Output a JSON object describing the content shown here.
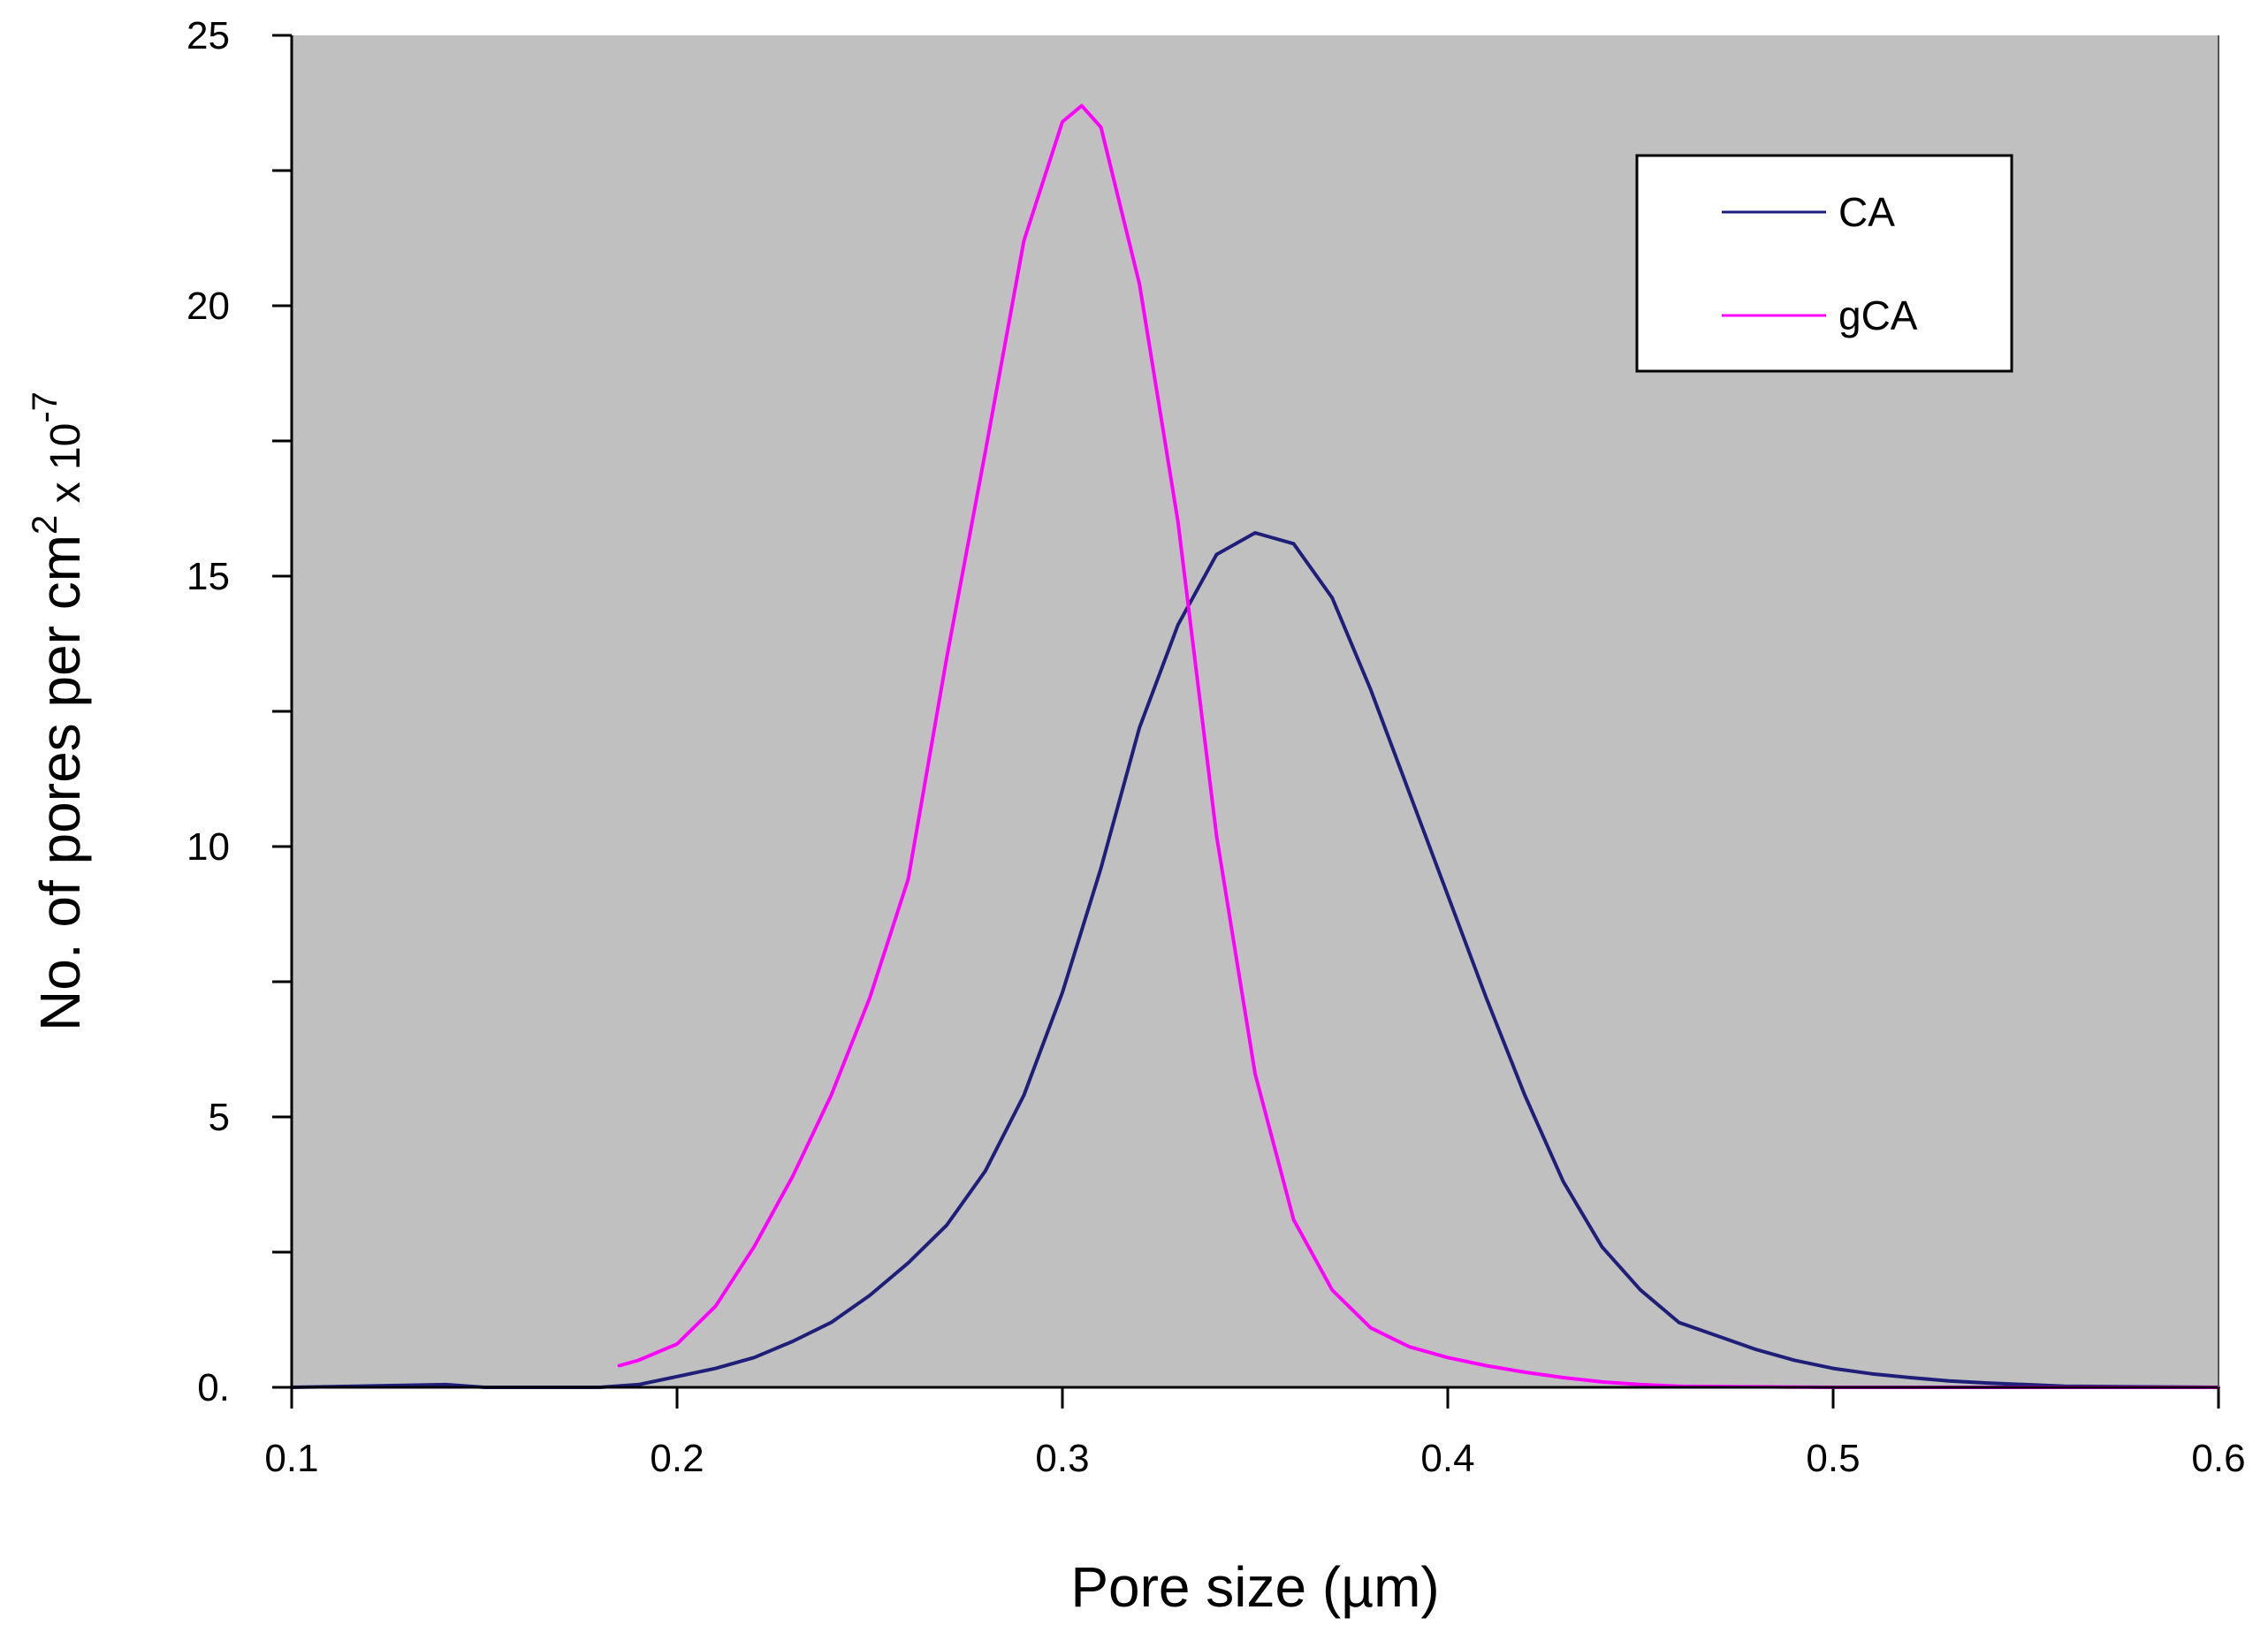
{
  "chart_data": {
    "type": "line",
    "title": "",
    "xlabel": "Pore size (µm)",
    "ylabel": "No. of pores per cm",
    "ylabel_sup1": "2",
    "ylabel_mid": " x 10",
    "ylabel_sup2": "-7",
    "xlim": [
      0.1,
      0.6
    ],
    "ylim": [
      0,
      25
    ],
    "xticks": [
      0.1,
      0.2,
      0.3,
      0.4,
      0.5,
      0.6
    ],
    "xtick_labels": [
      "0.1",
      "0.2",
      "0.3",
      "0.4",
      "0.5",
      "0.6"
    ],
    "yticks": [
      0,
      5,
      10,
      15,
      20,
      25
    ],
    "ytick_labels": [
      "0.",
      "5",
      "10",
      "15",
      "20",
      "25"
    ],
    "y_minor_step": 2.5,
    "plot_background": "#c0c0c0",
    "grid": false,
    "legend_position": "top-right",
    "series": [
      {
        "name": "CA",
        "color": "#1f1f7a",
        "x": [
          0.1,
          0.14,
          0.15,
          0.18,
          0.19,
          0.2,
          0.21,
          0.22,
          0.23,
          0.24,
          0.25,
          0.26,
          0.27,
          0.28,
          0.29,
          0.3,
          0.31,
          0.32,
          0.33,
          0.34,
          0.35,
          0.36,
          0.37,
          0.38,
          0.39,
          0.4,
          0.41,
          0.42,
          0.43,
          0.44,
          0.45,
          0.46,
          0.47,
          0.48,
          0.49,
          0.5,
          0.51,
          0.52,
          0.53,
          0.54,
          0.55,
          0.56,
          0.6
        ],
        "y": [
          0,
          0.05,
          0,
          0,
          0.05,
          0.2,
          0.35,
          0.55,
          0.85,
          1.2,
          1.7,
          2.3,
          3.0,
          4.0,
          5.4,
          7.3,
          9.6,
          12.2,
          14.1,
          15.4,
          15.8,
          15.6,
          14.6,
          12.9,
          11.0,
          9.1,
          7.2,
          5.4,
          3.8,
          2.6,
          1.8,
          1.2,
          0.95,
          0.7,
          0.5,
          0.35,
          0.25,
          0.18,
          0.12,
          0.08,
          0.05,
          0.02,
          0
        ]
      },
      {
        "name": "gCA",
        "color": "#ff00ff",
        "x": [
          0.185,
          0.19,
          0.2,
          0.21,
          0.22,
          0.23,
          0.24,
          0.25,
          0.26,
          0.27,
          0.28,
          0.29,
          0.3,
          0.305,
          0.31,
          0.32,
          0.33,
          0.34,
          0.35,
          0.36,
          0.37,
          0.38,
          0.39,
          0.4,
          0.41,
          0.42,
          0.43,
          0.44,
          0.45,
          0.46,
          0.5,
          0.6
        ],
        "y": [
          0.4,
          0.5,
          0.8,
          1.5,
          2.6,
          3.9,
          5.4,
          7.2,
          9.4,
          13.5,
          17.3,
          21.2,
          23.4,
          23.7,
          23.3,
          20.4,
          16.0,
          10.2,
          5.8,
          3.1,
          1.8,
          1.1,
          0.75,
          0.55,
          0.4,
          0.28,
          0.18,
          0.1,
          0.05,
          0.02,
          0,
          0
        ]
      }
    ]
  }
}
